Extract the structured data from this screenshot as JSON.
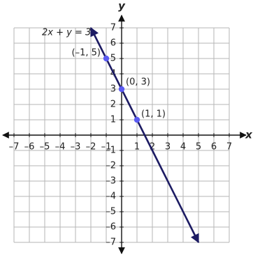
{
  "chart_data": {
    "type": "line",
    "equation": "2x + y = 3",
    "x_label": "x",
    "y_label": "y",
    "xlim": [
      -7,
      7
    ],
    "ylim": [
      -7,
      7
    ],
    "xticks": [
      {
        "value": -7,
        "label": "–7"
      },
      {
        "value": -6,
        "label": "–6"
      },
      {
        "value": -5,
        "label": "–5"
      },
      {
        "value": -4,
        "label": "–4"
      },
      {
        "value": -3,
        "label": "–3"
      },
      {
        "value": -2,
        "label": "–2"
      },
      {
        "value": -1,
        "label": "–1"
      },
      1,
      2,
      3,
      4,
      5,
      6,
      7
    ],
    "yticks": [
      {
        "value": -7,
        "label": "–7"
      },
      {
        "value": -6,
        "label": "–6"
      },
      {
        "value": -5,
        "label": "–5"
      },
      {
        "value": -4,
        "label": "–4"
      },
      {
        "value": -3,
        "label": "–3"
      },
      {
        "value": -2,
        "label": "–2"
      },
      {
        "value": -1,
        "label": "–1"
      },
      1,
      2,
      3,
      4,
      5,
      6,
      7
    ],
    "grid": true,
    "line": {
      "color": "#1c1b63",
      "x": [
        -2,
        5
      ],
      "values": [
        7,
        -7
      ]
    },
    "points": {
      "color": "#5b5bf2",
      "x": [
        -1,
        0,
        1
      ],
      "values": [
        5,
        3,
        1
      ],
      "value_labels": [
        "(–1, 5)",
        "(0, 3)",
        "(1, 1)"
      ]
    }
  }
}
